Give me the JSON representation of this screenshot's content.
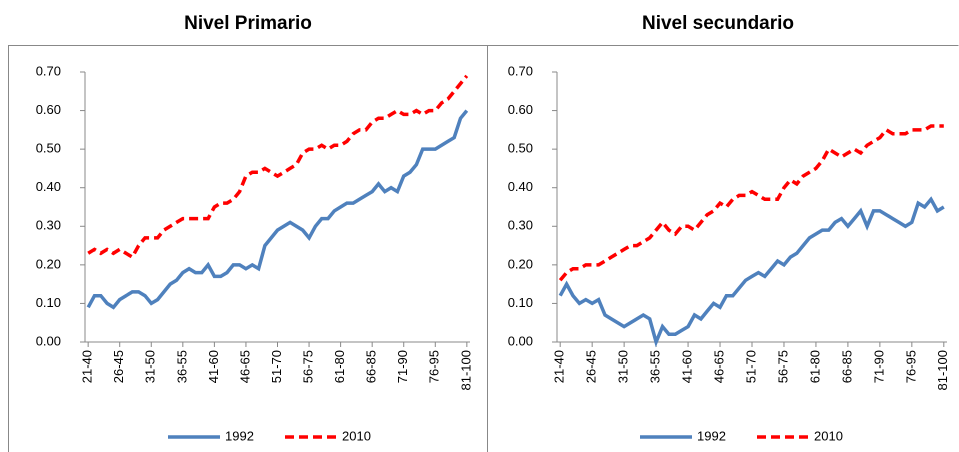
{
  "chart_data": [
    {
      "type": "line",
      "title": "Nivel Primario",
      "categories": [
        "21-40",
        null,
        null,
        null,
        null,
        "26-45",
        null,
        null,
        null,
        null,
        "31-50",
        null,
        null,
        null,
        null,
        "36-55",
        null,
        null,
        null,
        null,
        "41-60",
        null,
        null,
        null,
        null,
        "46-65",
        null,
        null,
        null,
        null,
        "51-70",
        null,
        null,
        null,
        null,
        "56-75",
        null,
        null,
        null,
        null,
        "61-80",
        null,
        null,
        null,
        null,
        "66-85",
        null,
        null,
        null,
        null,
        "71-90",
        null,
        null,
        null,
        null,
        "76-95",
        null,
        null,
        null,
        null,
        "81-100"
      ],
      "series": [
        {
          "name": "1992",
          "color": "#4f81bd",
          "dashed": false,
          "values": [
            0.09,
            0.12,
            0.12,
            0.1,
            0.09,
            0.11,
            0.12,
            0.13,
            0.13,
            0.12,
            0.1,
            0.11,
            0.13,
            0.15,
            0.16,
            0.18,
            0.19,
            0.18,
            0.18,
            0.2,
            0.17,
            0.17,
            0.18,
            0.2,
            0.2,
            0.19,
            0.2,
            0.19,
            0.25,
            0.27,
            0.29,
            0.3,
            0.31,
            0.3,
            0.29,
            0.27,
            0.3,
            0.32,
            0.32,
            0.34,
            0.35,
            0.36,
            0.36,
            0.37,
            0.38,
            0.39,
            0.41,
            0.39,
            0.4,
            0.39,
            0.43,
            0.44,
            0.46,
            0.5,
            0.5,
            0.5,
            0.51,
            0.52,
            0.53,
            0.58,
            0.6
          ]
        },
        {
          "name": "2010",
          "color": "#ff0000",
          "dashed": true,
          "values": [
            0.23,
            0.24,
            0.23,
            0.24,
            0.23,
            0.24,
            0.23,
            0.22,
            0.25,
            0.27,
            0.27,
            0.27,
            0.29,
            0.3,
            0.31,
            0.32,
            0.32,
            0.32,
            0.32,
            0.32,
            0.35,
            0.36,
            0.36,
            0.37,
            0.39,
            0.43,
            0.44,
            0.44,
            0.45,
            0.44,
            0.43,
            0.44,
            0.45,
            0.46,
            0.49,
            0.5,
            0.5,
            0.51,
            0.5,
            0.51,
            0.51,
            0.52,
            0.54,
            0.55,
            0.55,
            0.57,
            0.58,
            0.58,
            0.59,
            0.6,
            0.59,
            0.59,
            0.6,
            0.59,
            0.6,
            0.6,
            0.62,
            0.63,
            0.65,
            0.67,
            0.69
          ]
        }
      ],
      "ylim": [
        0,
        0.7
      ],
      "yticks": [
        {
          "value": 0,
          "label": "0.00"
        },
        {
          "value": 0.1,
          "label": "0.10"
        },
        {
          "value": 0.2,
          "label": "0.20"
        },
        {
          "value": 0.3,
          "label": "0.30"
        },
        {
          "value": 0.4,
          "label": "0.40"
        },
        {
          "value": 0.5,
          "label": "0.50"
        },
        {
          "value": 0.6,
          "label": "0.60"
        },
        {
          "value": 0.7,
          "label": "0.70"
        }
      ],
      "grid": false,
      "legend": "bottom"
    },
    {
      "type": "line",
      "title": "Nivel secundario",
      "categories": [
        "21-40",
        null,
        null,
        null,
        null,
        "26-45",
        null,
        null,
        null,
        null,
        "31-50",
        null,
        null,
        null,
        null,
        "36-55",
        null,
        null,
        null,
        null,
        "41-60",
        null,
        null,
        null,
        null,
        "46-65",
        null,
        null,
        null,
        null,
        "51-70",
        null,
        null,
        null,
        null,
        "56-75",
        null,
        null,
        null,
        null,
        "61-80",
        null,
        null,
        null,
        null,
        "66-85",
        null,
        null,
        null,
        null,
        "71-90",
        null,
        null,
        null,
        null,
        "76-95",
        null,
        null,
        null,
        null,
        "81-100"
      ],
      "series": [
        {
          "name": "1992",
          "color": "#4f81bd",
          "dashed": false,
          "values": [
            0.12,
            0.15,
            0.12,
            0.1,
            0.11,
            0.1,
            0.11,
            0.07,
            0.06,
            0.05,
            0.04,
            0.05,
            0.06,
            0.07,
            0.06,
            0.0,
            0.04,
            0.02,
            0.02,
            0.03,
            0.04,
            0.07,
            0.06,
            0.08,
            0.1,
            0.09,
            0.12,
            0.12,
            0.14,
            0.16,
            0.17,
            0.18,
            0.17,
            0.19,
            0.21,
            0.2,
            0.22,
            0.23,
            0.25,
            0.27,
            0.28,
            0.29,
            0.29,
            0.31,
            0.32,
            0.3,
            0.32,
            0.34,
            0.3,
            0.34,
            0.34,
            0.33,
            0.32,
            0.31,
            0.3,
            0.31,
            0.36,
            0.35,
            0.37,
            0.34,
            0.35
          ]
        },
        {
          "name": "2010",
          "color": "#ff0000",
          "dashed": true,
          "values": [
            0.16,
            0.18,
            0.19,
            0.19,
            0.2,
            0.2,
            0.2,
            0.21,
            0.22,
            0.23,
            0.24,
            0.25,
            0.25,
            0.26,
            0.27,
            0.29,
            0.31,
            0.29,
            0.28,
            0.3,
            0.3,
            0.29,
            0.31,
            0.33,
            0.34,
            0.36,
            0.35,
            0.37,
            0.38,
            0.38,
            0.39,
            0.38,
            0.37,
            0.37,
            0.37,
            0.4,
            0.42,
            0.41,
            0.43,
            0.44,
            0.45,
            0.47,
            0.5,
            0.49,
            0.48,
            0.49,
            0.5,
            0.49,
            0.51,
            0.52,
            0.53,
            0.55,
            0.54,
            0.54,
            0.54,
            0.55,
            0.55,
            0.55,
            0.56,
            0.56,
            0.56
          ]
        }
      ],
      "ylim": [
        0,
        0.7
      ],
      "yticks": [
        {
          "value": 0,
          "label": "0.00"
        },
        {
          "value": 0.1,
          "label": "0.10"
        },
        {
          "value": 0.2,
          "label": "0.20"
        },
        {
          "value": 0.3,
          "label": "0.30"
        },
        {
          "value": 0.4,
          "label": "0.40"
        },
        {
          "value": 0.5,
          "label": "0.50"
        },
        {
          "value": 0.6,
          "label": "0.60"
        },
        {
          "value": 0.7,
          "label": "0.70"
        }
      ],
      "grid": false,
      "legend": "bottom"
    }
  ]
}
